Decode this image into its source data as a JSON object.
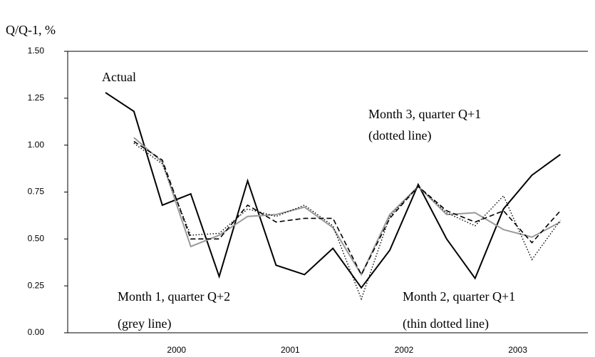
{
  "chart_data": {
    "type": "line",
    "title": "Q/Q-1, %",
    "categories": [
      null,
      null,
      "2000",
      null,
      null,
      null,
      "2001",
      null,
      null,
      null,
      "2002",
      null,
      null,
      null,
      "2003",
      null,
      null
    ],
    "ylim": [
      0,
      1.5
    ],
    "yticks": [
      {
        "value": 0,
        "label": "0.00"
      },
      {
        "value": 0.25,
        "label": "0.25"
      },
      {
        "value": 0.5,
        "label": "0.50"
      },
      {
        "value": 0.75,
        "label": "0.75"
      },
      {
        "value": 1,
        "label": "1.00"
      },
      {
        "value": 1.25,
        "label": "1.25"
      },
      {
        "value": 1.5,
        "label": "1.50"
      }
    ],
    "series": [
      {
        "name": "Actual",
        "color": "#000000",
        "style": "solid",
        "values": [
          1.28,
          1.18,
          0.68,
          0.74,
          0.3,
          0.81,
          0.36,
          0.31,
          0.45,
          0.24,
          0.44,
          0.79,
          0.5,
          0.29,
          0.66,
          0.84,
          0.95
        ]
      },
      {
        "name": "Month 1, quarter Q+2",
        "label": "(grey line)",
        "color": "#999999",
        "style": "solid",
        "values": [
          null,
          1.04,
          0.91,
          0.46,
          0.52,
          0.62,
          0.63,
          0.67,
          0.56,
          0.31,
          0.63,
          0.78,
          0.63,
          0.64,
          0.55,
          0.51,
          0.59
        ]
      },
      {
        "name": "Month 2, quarter Q+1",
        "label": "(thin dotted line)",
        "color": "#000000",
        "style": "dashed",
        "values": [
          null,
          1.02,
          0.92,
          0.5,
          0.5,
          0.68,
          0.59,
          0.61,
          0.61,
          0.31,
          0.61,
          0.78,
          0.65,
          0.59,
          0.65,
          0.48,
          0.65
        ]
      },
      {
        "name": "Month 3, quarter Q+1",
        "label": "(dotted line)",
        "color": "#000000",
        "style": "dotted",
        "values": [
          null,
          1.01,
          0.9,
          0.52,
          0.53,
          0.66,
          0.62,
          0.68,
          0.57,
          0.18,
          0.62,
          0.78,
          0.64,
          0.57,
          0.73,
          0.39,
          0.6
        ]
      }
    ]
  }
}
